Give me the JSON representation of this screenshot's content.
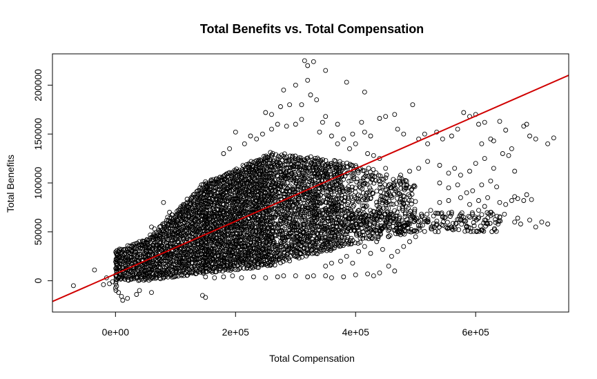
{
  "chart_data": {
    "type": "scatter",
    "title": "Total Benefits vs. Total Compensation",
    "xlabel": "Total Compensation",
    "ylabel": "Total Benefits",
    "xlim": [
      -105000,
      755000
    ],
    "ylim": [
      -32000,
      232000
    ],
    "x_ticks": [
      {
        "value": 0,
        "label": "0e+00"
      },
      {
        "value": 200000,
        "label": "2e+05"
      },
      {
        "value": 400000,
        "label": "4e+05"
      },
      {
        "value": 600000,
        "label": "6e+05"
      }
    ],
    "y_ticks": [
      {
        "value": 0,
        "label": "0"
      },
      {
        "value": 50000,
        "label": "50000"
      },
      {
        "value": 100000,
        "label": "100000"
      },
      {
        "value": 150000,
        "label": "150000"
      },
      {
        "value": 200000,
        "label": "200000"
      }
    ],
    "grid": false,
    "marker": "open-circle",
    "point_color": "#000000",
    "regression_line": {
      "color": "#d00000",
      "intercept": 7000,
      "slope": 0.269
    },
    "density_bands": [
      {
        "x_start": 0,
        "x_end": 50000,
        "y_low_start": 0,
        "y_low_end": 0,
        "y_high_start": 30000,
        "y_high_end": 42000,
        "density": 0.95
      },
      {
        "x_start": 50000,
        "x_end": 150000,
        "y_low_start": 0,
        "y_low_end": 8000,
        "y_high_start": 42000,
        "y_high_end": 100000,
        "density": 0.95
      },
      {
        "x_start": 150000,
        "x_end": 260000,
        "y_low_start": 8000,
        "y_low_end": 15000,
        "y_high_start": 100000,
        "y_high_end": 130000,
        "density": 0.95
      },
      {
        "x_start": 260000,
        "x_end": 380000,
        "y_low_start": 15000,
        "y_low_end": 35000,
        "y_high_start": 130000,
        "y_high_end": 120000,
        "density": 0.7
      },
      {
        "x_start": 380000,
        "x_end": 500000,
        "y_low_start": 35000,
        "y_low_end": 50000,
        "y_high_start": 120000,
        "y_high_end": 100000,
        "density": 0.4
      }
    ],
    "points": [
      [
        -70000,
        -5000
      ],
      [
        -35000,
        11000
      ],
      [
        -20000,
        -4000
      ],
      [
        -15000,
        3000
      ],
      [
        -10000,
        -3000
      ],
      [
        -5000,
        -1000
      ],
      [
        5000,
        -12000
      ],
      [
        10000,
        -16000
      ],
      [
        12000,
        -20000
      ],
      [
        20000,
        -18000
      ],
      [
        35000,
        -14000
      ],
      [
        40000,
        -10000
      ],
      [
        60000,
        -12000
      ],
      [
        145000,
        -15000
      ],
      [
        150000,
        -17000
      ],
      [
        80000,
        80000
      ],
      [
        90000,
        70000
      ],
      [
        60000,
        55000
      ],
      [
        315000,
        225000
      ],
      [
        320000,
        220000
      ],
      [
        330000,
        224000
      ],
      [
        350000,
        215000
      ],
      [
        280000,
        195000
      ],
      [
        300000,
        200000
      ],
      [
        320000,
        205000
      ],
      [
        290000,
        180000
      ],
      [
        310000,
        180000
      ],
      [
        250000,
        172000
      ],
      [
        260000,
        170000
      ],
      [
        275000,
        178000
      ],
      [
        385000,
        203000
      ],
      [
        415000,
        193000
      ],
      [
        325000,
        190000
      ],
      [
        335000,
        185000
      ],
      [
        345000,
        162000
      ],
      [
        350000,
        168000
      ],
      [
        370000,
        160000
      ],
      [
        380000,
        145000
      ],
      [
        395000,
        150000
      ],
      [
        410000,
        162000
      ],
      [
        415000,
        152000
      ],
      [
        425000,
        148000
      ],
      [
        440000,
        166000
      ],
      [
        450000,
        168000
      ],
      [
        465000,
        170000
      ],
      [
        470000,
        155000
      ],
      [
        480000,
        150000
      ],
      [
        495000,
        180000
      ],
      [
        505000,
        145000
      ],
      [
        515000,
        150000
      ],
      [
        520000,
        140000
      ],
      [
        535000,
        152000
      ],
      [
        545000,
        145000
      ],
      [
        560000,
        148000
      ],
      [
        570000,
        155000
      ],
      [
        580000,
        172000
      ],
      [
        590000,
        168000
      ],
      [
        600000,
        170000
      ],
      [
        605000,
        160000
      ],
      [
        615000,
        162000
      ],
      [
        625000,
        145000
      ],
      [
        630000,
        143000
      ],
      [
        640000,
        163000
      ],
      [
        650000,
        154000
      ],
      [
        660000,
        135000
      ],
      [
        685000,
        160000
      ],
      [
        690000,
        148000
      ],
      [
        700000,
        145000
      ],
      [
        720000,
        140000
      ],
      [
        730000,
        146000
      ],
      [
        680000,
        158000
      ],
      [
        610000,
        140000
      ],
      [
        520000,
        122000
      ],
      [
        540000,
        118000
      ],
      [
        555000,
        110000
      ],
      [
        565000,
        115000
      ],
      [
        575000,
        108000
      ],
      [
        590000,
        112000
      ],
      [
        600000,
        120000
      ],
      [
        615000,
        125000
      ],
      [
        630000,
        115000
      ],
      [
        645000,
        130000
      ],
      [
        655000,
        128000
      ],
      [
        665000,
        112000
      ],
      [
        540000,
        100000
      ],
      [
        555000,
        95000
      ],
      [
        570000,
        98000
      ],
      [
        585000,
        90000
      ],
      [
        595000,
        92000
      ],
      [
        610000,
        98000
      ],
      [
        625000,
        102000
      ],
      [
        635000,
        96000
      ],
      [
        540000,
        80000
      ],
      [
        555000,
        82000
      ],
      [
        575000,
        85000
      ],
      [
        590000,
        78000
      ],
      [
        605000,
        82000
      ],
      [
        615000,
        76000
      ],
      [
        620000,
        85000
      ],
      [
        640000,
        80000
      ],
      [
        650000,
        78000
      ],
      [
        660000,
        82000
      ],
      [
        665000,
        86000
      ],
      [
        670000,
        84000
      ],
      [
        680000,
        82000
      ],
      [
        685000,
        88000
      ],
      [
        693000,
        83000
      ],
      [
        665000,
        60000
      ],
      [
        670000,
        64000
      ],
      [
        675000,
        58000
      ],
      [
        690000,
        62000
      ],
      [
        700000,
        55000
      ],
      [
        710000,
        60000
      ],
      [
        720000,
        58000
      ],
      [
        560000,
        70000
      ],
      [
        580000,
        65000
      ],
      [
        595000,
        68000
      ],
      [
        605000,
        72000
      ],
      [
        615000,
        62000
      ],
      [
        625000,
        70000
      ],
      [
        640000,
        65000
      ],
      [
        648000,
        68000
      ],
      [
        520000,
        60000
      ],
      [
        535000,
        58000
      ],
      [
        545000,
        65000
      ],
      [
        560000,
        55000
      ],
      [
        575000,
        62000
      ],
      [
        585000,
        56000
      ],
      [
        610000,
        52000
      ],
      [
        620000,
        58000
      ],
      [
        490000,
        40000
      ],
      [
        500000,
        45000
      ],
      [
        470000,
        30000
      ],
      [
        480000,
        35000
      ],
      [
        460000,
        25000
      ],
      [
        455000,
        15000
      ],
      [
        465000,
        10000
      ],
      [
        440000,
        8000
      ],
      [
        420000,
        7000
      ],
      [
        430000,
        5000
      ],
      [
        400000,
        6000
      ],
      [
        380000,
        4000
      ],
      [
        360000,
        3000
      ],
      [
        350000,
        5000
      ],
      [
        330000,
        5000
      ],
      [
        320000,
        4000
      ],
      [
        300000,
        5000
      ],
      [
        280000,
        5000
      ],
      [
        270000,
        4000
      ],
      [
        250000,
        3000
      ],
      [
        230000,
        4000
      ],
      [
        210000,
        3000
      ],
      [
        195000,
        5000
      ],
      [
        180000,
        4000
      ],
      [
        165000,
        3000
      ],
      [
        150000,
        4000
      ],
      [
        350000,
        15000
      ],
      [
        360000,
        18000
      ],
      [
        375000,
        20000
      ],
      [
        385000,
        25000
      ],
      [
        395000,
        18000
      ],
      [
        405000,
        30000
      ],
      [
        415000,
        35000
      ],
      [
        425000,
        28000
      ],
      [
        435000,
        40000
      ],
      [
        445000,
        32000
      ],
      [
        455000,
        45000
      ],
      [
        470000,
        50000
      ],
      [
        480000,
        55000
      ],
      [
        490000,
        58000
      ],
      [
        500000,
        62000
      ],
      [
        510000,
        66000
      ],
      [
        525000,
        72000
      ],
      [
        460000,
        95000
      ],
      [
        475000,
        108000
      ],
      [
        490000,
        112000
      ],
      [
        505000,
        115000
      ],
      [
        450000,
        115000
      ],
      [
        440000,
        125000
      ],
      [
        430000,
        128000
      ],
      [
        420000,
        130000
      ],
      [
        400000,
        140000
      ],
      [
        390000,
        135000
      ],
      [
        370000,
        140000
      ],
      [
        360000,
        148000
      ],
      [
        340000,
        152000
      ],
      [
        300000,
        160000
      ],
      [
        310000,
        165000
      ],
      [
        285000,
        158000
      ],
      [
        270000,
        160000
      ],
      [
        260000,
        155000
      ],
      [
        245000,
        150000
      ],
      [
        235000,
        145000
      ],
      [
        225000,
        148000
      ],
      [
        215000,
        140000
      ],
      [
        200000,
        152000
      ],
      [
        190000,
        135000
      ],
      [
        180000,
        130000
      ]
    ]
  }
}
